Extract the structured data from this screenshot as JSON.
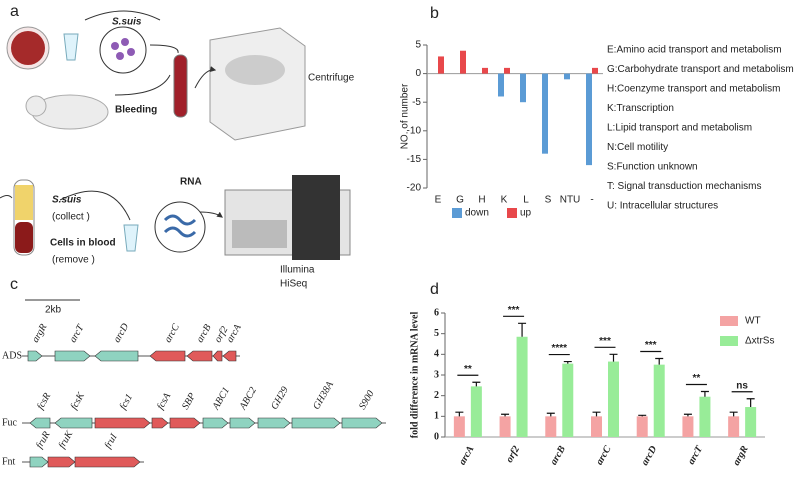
{
  "panels": {
    "a": {
      "letter": "a",
      "texts": [
        "S.suis",
        "Bleeding",
        "Centrifuge",
        "S.suis",
        "(collect )",
        "RNA",
        "Cells in blood",
        "(remove )",
        "Illumina",
        "HiSeq"
      ]
    },
    "b": {
      "letter": "b"
    },
    "c": {
      "letter": "c",
      "scale": "2kb",
      "operons": [
        {
          "name": "ADS",
          "genes": [
            "argR",
            "arcT",
            "arcD",
            "arcC",
            "arcB",
            "orf2",
            "arcA"
          ]
        },
        {
          "name": "Fuc",
          "genes": [
            "fcsR",
            "fcsK",
            "fcs1",
            "fcsA",
            "SBP",
            "ABC1",
            "ABC2",
            "GH29",
            "GH38A",
            "S900"
          ]
        },
        {
          "name": "Fnt",
          "genes": [
            "fruR",
            "fruK",
            "fruI"
          ]
        }
      ]
    },
    "d": {
      "letter": "d"
    }
  },
  "chart_data": [
    {
      "type": "bar",
      "ylabel": "NO. of number",
      "categories": [
        "E",
        "G",
        "H",
        "K",
        "L",
        "S",
        "NTU",
        "-"
      ],
      "series": [
        {
          "name": "down",
          "color": "#5b9bd5",
          "values": [
            null,
            null,
            null,
            -4,
            -5,
            -14,
            -1,
            -16
          ]
        },
        {
          "name": "up",
          "color": "#e8484b",
          "values": [
            3,
            4,
            1,
            1,
            null,
            null,
            null,
            1
          ]
        }
      ],
      "ylim": [
        -20,
        5
      ],
      "yticks": [
        -20,
        -15,
        -10,
        -5,
        0,
        5
      ],
      "legend": "bottom",
      "annotations": [
        "E:Amino acid transport and metabolism",
        "G:Carbohydrate transport and metabolism",
        "H:Coenzyme transport and metabolism",
        "K:Transcription",
        "L:Lipid  transport and metabolism",
        "N:Cell motility",
        "S:Function unknown",
        "T: Signal transduction mechanisms",
        "U: Intracellular structures"
      ]
    },
    {
      "type": "bar",
      "ylabel": "fold difference in mRNA level",
      "categories": [
        "arcA",
        "orf2",
        "arcB",
        "arcC",
        "arcD",
        "arcT",
        "argR"
      ],
      "series": [
        {
          "name": "WT",
          "color": "#f4a3a3",
          "values": [
            1,
            1,
            1,
            1,
            1,
            1,
            1
          ],
          "error": [
            0.2,
            0.1,
            0.15,
            0.2,
            0.05,
            0.1,
            0.2
          ]
        },
        {
          "name": "ΔxtrSs",
          "color": "#98ec98",
          "values": [
            2.45,
            4.85,
            3.55,
            3.65,
            3.5,
            1.95,
            1.45
          ],
          "error": [
            0.2,
            0.65,
            0.1,
            0.35,
            0.3,
            0.25,
            0.4
          ]
        }
      ],
      "significance": [
        "**",
        "***",
        "****",
        "***",
        "***",
        "**",
        "ns"
      ],
      "ylim": [
        0,
        6
      ],
      "yticks": [
        0,
        1,
        2,
        3,
        4,
        5,
        6
      ],
      "legend": "upper right"
    }
  ]
}
